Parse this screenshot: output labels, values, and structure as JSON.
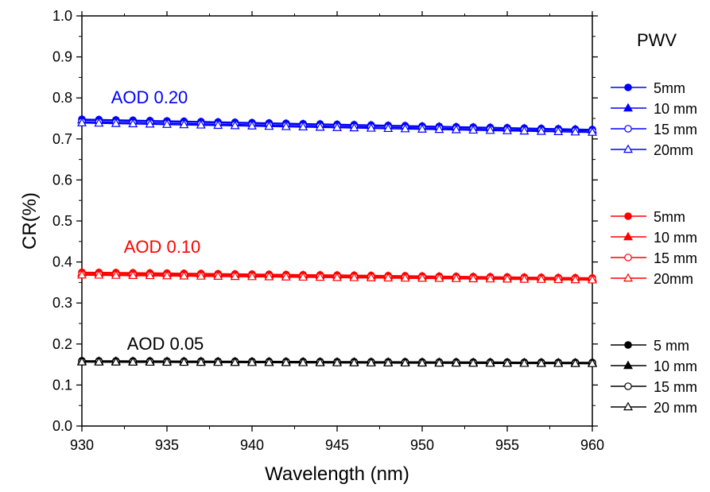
{
  "chart_data": {
    "type": "line",
    "xlabel": "Wavelength (nm)",
    "ylabel": "CR(%)",
    "xlim": [
      930,
      960
    ],
    "ylim": [
      0.0,
      1.0
    ],
    "x_ticks": [
      "930",
      "935",
      "940",
      "945",
      "950",
      "955",
      "960"
    ],
    "y_ticks": [
      "0.0",
      "0.1",
      "0.2",
      "0.3",
      "0.4",
      "0.5",
      "0.6",
      "0.7",
      "0.8",
      "0.9",
      "1.0"
    ],
    "legend_title": "PWV",
    "legend_position": "right",
    "grid": false,
    "x": [
      930,
      931,
      932,
      933,
      934,
      935,
      936,
      937,
      938,
      939,
      940,
      941,
      942,
      943,
      944,
      945,
      946,
      947,
      948,
      949,
      950,
      951,
      952,
      953,
      954,
      955,
      956,
      957,
      958,
      959,
      960
    ],
    "groups": [
      {
        "label": "AOD 0.20",
        "color": "#0000ff",
        "series": [
          {
            "name": "5mm",
            "marker": "filled-circle",
            "start": 0.748,
            "end": 0.723
          },
          {
            "name": "10 mm",
            "marker": "filled-triangle",
            "start": 0.746,
            "end": 0.722
          },
          {
            "name": "15 mm",
            "marker": "open-circle",
            "start": 0.742,
            "end": 0.719
          },
          {
            "name": "20mm",
            "marker": "open-triangle",
            "start": 0.739,
            "end": 0.716
          }
        ]
      },
      {
        "label": "AOD 0.10",
        "color": "#ff0000",
        "series": [
          {
            "name": "5mm",
            "marker": "filled-circle",
            "start": 0.375,
            "end": 0.361
          },
          {
            "name": "10 mm",
            "marker": "filled-triangle",
            "start": 0.373,
            "end": 0.36
          },
          {
            "name": "15 mm",
            "marker": "open-circle",
            "start": 0.37,
            "end": 0.358
          },
          {
            "name": "20mm",
            "marker": "open-triangle",
            "start": 0.368,
            "end": 0.356
          }
        ]
      },
      {
        "label": "AOD 0.05",
        "color": "#000000",
        "series": [
          {
            "name": "5 mm",
            "marker": "filled-circle",
            "start": 0.159,
            "end": 0.155
          },
          {
            "name": "10 mm",
            "marker": "filled-triangle",
            "start": 0.158,
            "end": 0.154
          },
          {
            "name": "15 mm",
            "marker": "open-circle",
            "start": 0.157,
            "end": 0.153
          },
          {
            "name": "20 mm",
            "marker": "open-triangle",
            "start": 0.156,
            "end": 0.152
          }
        ]
      }
    ]
  }
}
